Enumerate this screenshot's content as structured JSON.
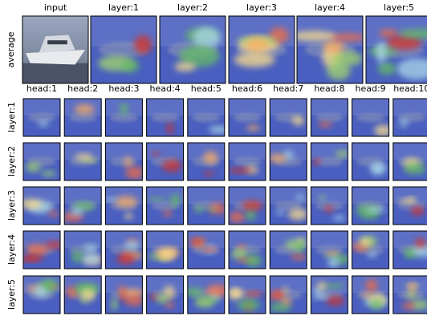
{
  "columns": [
    "input",
    "layer:1",
    "layer:2",
    "layer:3",
    "layer:4",
    "layer:5"
  ],
  "average_label": "average",
  "heads": [
    "head:1",
    "head:2",
    "head:3",
    "head:4",
    "head:5",
    "head:6",
    "head:7",
    "head:8",
    "head:9",
    "head:10"
  ],
  "layers": [
    "layer:1",
    "layer:2",
    "layer:3",
    "layer:4",
    "layer:5"
  ]
}
